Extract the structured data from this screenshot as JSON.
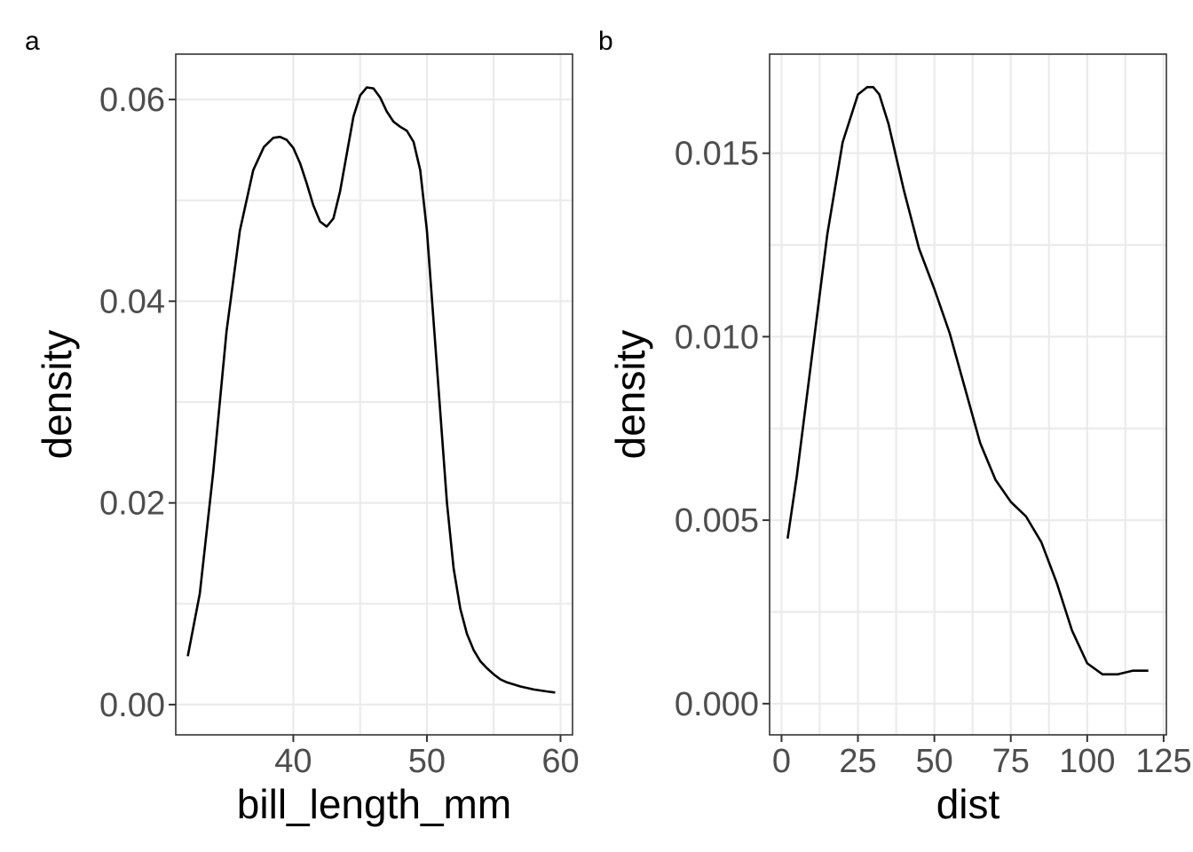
{
  "chart_data": [
    {
      "type": "line",
      "panel_tag": "a",
      "xlabel": "bill_length_mm",
      "ylabel": "density",
      "xlim": [
        31.2,
        60.9
      ],
      "ylim": [
        -0.003,
        0.0645
      ],
      "xticks": [
        40,
        50,
        60
      ],
      "yticks": [
        0.0,
        0.02,
        0.04,
        0.06
      ],
      "xtick_labels": [
        "40",
        "50",
        "60"
      ],
      "ytick_labels": [
        "0.00",
        "0.02",
        "0.04",
        "0.06"
      ],
      "grid": true,
      "series": [
        {
          "x": [
            32.1,
            33.0,
            34.0,
            35.0,
            36.0,
            37.0,
            37.8,
            38.5,
            39.0,
            39.5,
            40.0,
            40.5,
            41.0,
            41.5,
            42.0,
            42.5,
            43.0,
            43.5,
            44.0,
            44.5,
            45.0,
            45.5,
            46.0,
            46.5,
            47.0,
            47.5,
            48.0,
            48.5,
            49.0,
            49.5,
            50.0,
            50.5,
            51.0,
            51.5,
            52.0,
            52.5,
            53.0,
            53.5,
            54.0,
            54.5,
            55.0,
            55.5,
            56.0,
            57.0,
            58.0,
            59.0,
            59.6
          ],
          "y": [
            0.0048,
            0.011,
            0.023,
            0.037,
            0.047,
            0.053,
            0.0553,
            0.0562,
            0.0563,
            0.056,
            0.0552,
            0.0537,
            0.0517,
            0.0495,
            0.0479,
            0.0474,
            0.0482,
            0.0509,
            0.0546,
            0.0583,
            0.0604,
            0.0612,
            0.0611,
            0.0602,
            0.0588,
            0.0578,
            0.0573,
            0.0569,
            0.0558,
            0.053,
            0.047,
            0.038,
            0.029,
            0.02,
            0.0135,
            0.0095,
            0.007,
            0.0054,
            0.0043,
            0.0036,
            0.003,
            0.0025,
            0.0022,
            0.0018,
            0.0015,
            0.0013,
            0.0012
          ]
        }
      ]
    },
    {
      "type": "line",
      "panel_tag": "b",
      "xlabel": "dist",
      "ylabel": "density",
      "xlim": [
        -3.9,
        125.9
      ],
      "ylim": [
        -0.00085,
        0.0177
      ],
      "xticks": [
        0,
        25,
        50,
        75,
        100,
        125
      ],
      "yticks": [
        0.0,
        0.005,
        0.01,
        0.015
      ],
      "xtick_labels": [
        "0",
        "25",
        "50",
        "75",
        "100",
        "125"
      ],
      "ytick_labels": [
        "0.000",
        "0.005",
        "0.010",
        "0.015"
      ],
      "grid": true,
      "series": [
        {
          "x": [
            2,
            5,
            10,
            15,
            20,
            25,
            28,
            30,
            32,
            35,
            40,
            45,
            50,
            55,
            60,
            65,
            70,
            75,
            80,
            85,
            90,
            95,
            100,
            105,
            110,
            115,
            120
          ],
          "y": [
            0.0045,
            0.0062,
            0.0095,
            0.0128,
            0.0153,
            0.0166,
            0.0168,
            0.0168,
            0.0166,
            0.0158,
            0.014,
            0.0124,
            0.0113,
            0.0101,
            0.0086,
            0.0071,
            0.0061,
            0.0055,
            0.0051,
            0.0044,
            0.0033,
            0.002,
            0.0011,
            0.0008,
            0.0008,
            0.0009,
            0.0009
          ]
        }
      ]
    }
  ]
}
